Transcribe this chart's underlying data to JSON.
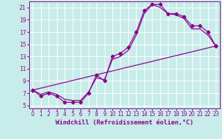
{
  "xlabel": "Windchill (Refroidissement éolien,°C)",
  "bg_color": "#c8ecea",
  "grid_color": "#ffffff",
  "line_color": "#8b008b",
  "marker": "D",
  "markersize": 2.5,
  "linewidth": 0.9,
  "xlim": [
    -0.5,
    23.5
  ],
  "ylim": [
    4.5,
    22.0
  ],
  "xticks": [
    0,
    1,
    2,
    3,
    4,
    5,
    6,
    7,
    8,
    9,
    10,
    11,
    12,
    13,
    14,
    15,
    16,
    17,
    18,
    19,
    20,
    21,
    22,
    23
  ],
  "yticks": [
    5,
    7,
    9,
    11,
    13,
    15,
    17,
    19,
    21
  ],
  "series1_x": [
    0,
    1,
    2,
    3,
    4,
    5,
    6,
    7,
    8,
    9,
    10,
    11,
    12,
    13,
    14,
    15,
    16,
    17,
    18,
    19,
    20,
    21,
    22,
    23
  ],
  "series1_y": [
    7.5,
    6.5,
    7.0,
    6.5,
    5.5,
    5.5,
    5.5,
    7.0,
    10.0,
    9.0,
    13.0,
    13.5,
    14.5,
    17.0,
    20.5,
    21.5,
    21.5,
    20.0,
    20.0,
    19.5,
    18.0,
    18.0,
    17.0,
    14.7
  ],
  "series2_x": [
    0,
    1,
    2,
    3,
    4,
    5,
    6,
    7,
    8,
    9,
    10,
    11,
    12,
    13,
    14,
    15,
    16,
    17,
    18,
    19,
    20,
    21,
    22,
    23
  ],
  "series2_y": [
    7.5,
    6.8,
    7.2,
    6.8,
    6.0,
    5.8,
    5.8,
    7.2,
    9.5,
    9.2,
    12.5,
    13.0,
    14.0,
    16.5,
    20.0,
    21.5,
    21.0,
    20.0,
    19.8,
    19.2,
    17.5,
    17.5,
    16.5,
    14.7
  ],
  "series3_x": [
    0,
    23
  ],
  "series3_y": [
    7.5,
    14.7
  ],
  "tick_fontsize": 5.5,
  "xlabel_fontsize": 6.5
}
